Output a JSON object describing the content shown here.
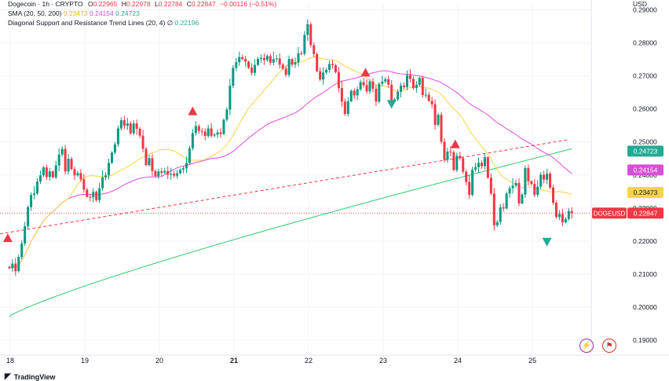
{
  "legend": {
    "title": "Dogecoin · 1h · CRYPTO",
    "o_label": "O",
    "o_value": "0.22965",
    "h_label": "H",
    "h_value": "0.22978",
    "l_label": "L",
    "l_value": "0.22784",
    "c_label": "C",
    "c_value": "0.22847",
    "change": "−0.00116 (−0.51%)",
    "sma_label": "SMA (20, 50, 200)",
    "sma20": "0.23473",
    "sma50": "0.24154",
    "sma200": "0.24723",
    "trend_label": "Diagonal Support and Resistance Trend Lines (20, 4)",
    "trend_symbol": "∅",
    "trend_value": "0.22196"
  },
  "currency": "USD",
  "brand": "TradingView",
  "colors": {
    "up": "#089981",
    "down": "#f23645",
    "sma20": "#f5d547",
    "sma50": "#e04be0",
    "sma200": "#2ecc71",
    "trend": "#f23645",
    "grid": "#f0f3fa"
  },
  "chart_data": {
    "type": "line",
    "title": "Dogecoin · 1h · CRYPTO",
    "ylim": [
      0.186,
      0.292
    ],
    "yticks": [
      "0.29000",
      "0.28000",
      "0.27000",
      "0.26000",
      "0.25000",
      "0.24000",
      "0.23000",
      "0.22000",
      "0.21000",
      "0.20000",
      "0.19000"
    ],
    "xticks": [
      {
        "label": "18",
        "t": 0.3
      },
      {
        "label": "19",
        "t": 24.3
      },
      {
        "label": "20",
        "t": 48.3
      },
      {
        "label": "21",
        "t": 72.3
      },
      {
        "label": "22",
        "t": 96.3
      },
      {
        "label": "23",
        "t": 120.3
      },
      {
        "label": "24",
        "t": 144.3
      },
      {
        "label": "25",
        "t": 168.3
      }
    ],
    "t_range": [
      -3,
      187
    ],
    "candles_close": [
      0.2118,
      0.2132,
      0.2109,
      0.2152,
      0.2193,
      0.2245,
      0.2303,
      0.234,
      0.2344,
      0.238,
      0.2399,
      0.2423,
      0.2394,
      0.2411,
      0.2393,
      0.2429,
      0.2462,
      0.2479,
      0.2411,
      0.2449,
      0.2418,
      0.2399,
      0.2406,
      0.2387,
      0.2356,
      0.2334,
      0.2332,
      0.2349,
      0.2324,
      0.236,
      0.2393,
      0.2399,
      0.2437,
      0.2468,
      0.2493,
      0.2541,
      0.2566,
      0.2549,
      0.2556,
      0.2526,
      0.2556,
      0.254,
      0.2519,
      0.2479,
      0.243,
      0.2451,
      0.2412,
      0.2397,
      0.2411,
      0.2407,
      0.2412,
      0.2401,
      0.2404,
      0.2398,
      0.2405,
      0.2416,
      0.242,
      0.2436,
      0.2481,
      0.2527,
      0.2548,
      0.2533,
      0.2531,
      0.2518,
      0.2541,
      0.2519,
      0.2522,
      0.2529,
      0.2524,
      0.2567,
      0.2598,
      0.267,
      0.2724,
      0.2741,
      0.2757,
      0.2751,
      0.2743,
      0.2725,
      0.2709,
      0.2733,
      0.2751,
      0.2754,
      0.2748,
      0.276,
      0.274,
      0.2751,
      0.2753,
      0.2734,
      0.2722,
      0.2703,
      0.2751,
      0.2734,
      0.2741,
      0.2768,
      0.2767,
      0.2824,
      0.2856,
      0.2793,
      0.2766,
      0.2714,
      0.2689,
      0.271,
      0.2718,
      0.2736,
      0.2732,
      0.2711,
      0.2663,
      0.2622,
      0.2585,
      0.2623,
      0.2655,
      0.2641,
      0.2659,
      0.2681,
      0.2672,
      0.2653,
      0.2683,
      0.2661,
      0.2622,
      0.2676,
      0.2683,
      0.269,
      0.2673,
      0.2625,
      0.2629,
      0.2652,
      0.2671,
      0.2666,
      0.2702,
      0.2691,
      0.2663,
      0.2673,
      0.2694,
      0.2642,
      0.2643,
      0.2624,
      0.2614,
      0.2552,
      0.2582,
      0.2501,
      0.2446,
      0.2471,
      0.2469,
      0.2415,
      0.2458,
      0.2451,
      0.241,
      0.2379,
      0.234,
      0.2416,
      0.2424,
      0.2437,
      0.2427,
      0.2454,
      0.2392,
      0.2344,
      0.2248,
      0.2258,
      0.2302,
      0.2299,
      0.2344,
      0.236,
      0.2368,
      0.2376,
      0.2314,
      0.2341,
      0.2421,
      0.2381,
      0.2373,
      0.234,
      0.2365,
      0.2401,
      0.2386,
      0.2404,
      0.2362,
      0.2316,
      0.2273,
      0.2282,
      0.2257,
      0.2267,
      0.2291,
      0.2285
    ],
    "series": [
      {
        "name": "SMA 20",
        "value": "0.23473"
      },
      {
        "name": "SMA 50",
        "value": "0.24154"
      },
      {
        "name": "SMA 200",
        "value": "0.24723"
      },
      {
        "name": "Trend line",
        "value": "0.22196"
      }
    ],
    "trend_line": {
      "from": [
        -3,
        0.2222
      ],
      "to": [
        180,
        0.2507
      ]
    },
    "last_price_label": "DOGEUSD",
    "last_price": "0.22847",
    "price_tags": [
      {
        "value": "0.24723",
        "price": 0.24723,
        "color": "#22ab94"
      },
      {
        "value": "0.24154",
        "price": 0.24154,
        "color": "#d64fd6"
      },
      {
        "value": "0.23473",
        "price": 0.23473,
        "color": "#f5d547",
        "text": "#131722"
      }
    ],
    "signals_up": [
      [
        -0.5,
        0.2209
      ],
      [
        59,
        0.2593
      ],
      [
        114.6,
        0.271
      ],
      [
        143.5,
        0.2493
      ]
    ],
    "signals_down": [
      [
        123,
        0.2615
      ],
      [
        173,
        0.2198
      ]
    ]
  }
}
